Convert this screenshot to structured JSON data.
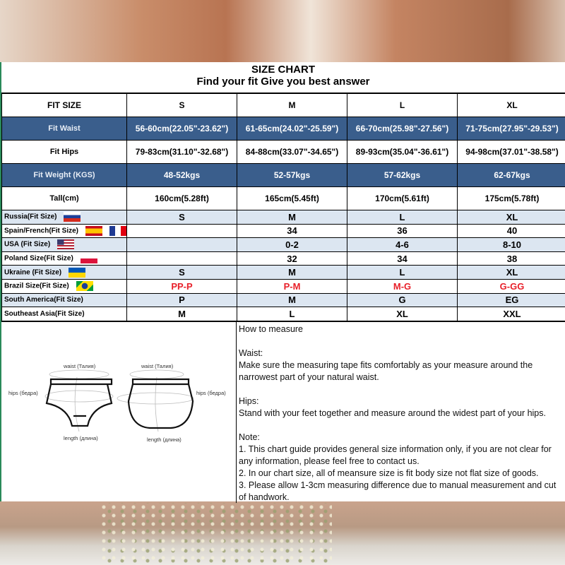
{
  "title": "SIZE CHART",
  "subtitle": "Find your fit Give you best answer",
  "columns": [
    "FIT SIZE",
    "S",
    "M",
    "L",
    "XL"
  ],
  "measure_rows": [
    {
      "label": "Fit Waist",
      "values": [
        "56-60cm(22.05\"-23.62\")",
        "61-65cm(24.02\"-25.59\")",
        "66-70cm(25.98\"-27.56\")",
        "71-75cm(27.95\"-29.53\")"
      ]
    },
    {
      "label": "Fit Hips",
      "values": [
        "79-83cm(31.10\"-32.68\")",
        "84-88cm(33.07\"-34.65\")",
        "89-93cm(35.04\"-36.61\")",
        "94-98cm(37.01\"-38.58\")"
      ]
    },
    {
      "label": "Fit Weight (KGS)",
      "values": [
        "48-52kgs",
        "52-57kgs",
        "57-62kgs",
        "62-67kgs"
      ]
    },
    {
      "label": "Tall(cm)",
      "values": [
        "160cm(5.28ft)",
        "165cm(5.45ft)",
        "170cm(5.61ft)",
        "175cm(5.78ft)"
      ]
    }
  ],
  "country_rows": [
    {
      "label": "Russia(Fit Size)",
      "flags": [
        "russia-flag"
      ],
      "values": [
        "S",
        "M",
        "L",
        "XL"
      ]
    },
    {
      "label": "Spain/French(Fit Size)",
      "flags": [
        "spain-flag",
        "france-flag"
      ],
      "values": [
        "",
        "34",
        "36",
        "40"
      ]
    },
    {
      "label": "USA (Fit Size)",
      "flags": [
        "usa-flag"
      ],
      "values": [
        "",
        "0-2",
        "4-6",
        "8-10"
      ]
    },
    {
      "label": "Poland Size(Fit Size)",
      "flags": [
        "poland-flag"
      ],
      "values": [
        "",
        "32",
        "34",
        "38"
      ]
    },
    {
      "label": "Ukraine (Fit Size)",
      "flags": [
        "ukraine-flag"
      ],
      "values": [
        "S",
        "M",
        "L",
        "XL"
      ]
    },
    {
      "label": "Brazil Size(Fit Size)",
      "flags": [
        "brazil-flag"
      ],
      "values": [
        "PP-P",
        "P-M",
        "M-G",
        "G-GG"
      ],
      "color": "#e8202a"
    },
    {
      "label": "South America(Fit Size)",
      "flags": [],
      "values": [
        "P",
        "M",
        "G",
        "EG"
      ]
    },
    {
      "label": "Southeast Asia(Fit Size)",
      "flags": [],
      "values": [
        "M",
        "L",
        "XL",
        "XXL"
      ]
    }
  ],
  "diagram": {
    "waist": "waist (Талия)",
    "hips": "hips (бедра)",
    "length": "length (длина)"
  },
  "instructions": {
    "heading": "How to measure",
    "waist_title": "Waist:",
    "waist_text": "Make sure the measuring tape fits comfortably as your measure around the narrowest part of your natural waist.",
    "hips_title": "Hips:",
    "hips_text": "Stand with your feet together and measure around the widest part of your hips.",
    "note_title": "Note:",
    "notes": [
      "1. This chart guide provides general size information only, if you are not clear for any information, please feel free to contact us.",
      "2. In our chart size, all of meansure size is fit body size not flat size of goods.",
      "3. Please allow 1-3cm measuring difference due to manual measurement and cut of handwork."
    ]
  },
  "colors": {
    "header_blue": "#3a5e8c",
    "alt_row": "#dce6f1",
    "brazil_red": "#e8202a"
  }
}
